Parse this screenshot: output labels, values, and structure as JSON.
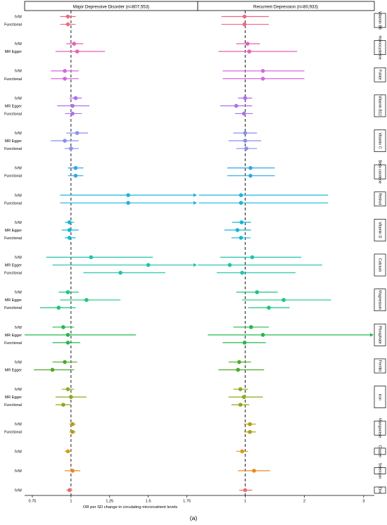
{
  "chart_data": {
    "type": "forest",
    "xlabel": "OR per SD change in circulating micronutrient levels",
    "panel_label": "(a)",
    "panels": [
      {
        "title": "Major Depressive Disorder (n=807,553)",
        "xlim": [
          0.7,
          1.82
        ],
        "ticks": [
          0.75,
          1,
          1.25,
          1.5,
          1.75
        ],
        "tick_labels": [
          "0.75",
          "1",
          "1.25",
          "1.5",
          "1.75"
        ]
      },
      {
        "title": "Recurrent Depression (n=80,933)",
        "xlim": [
          0.2,
          3.18
        ],
        "ticks": [
          1,
          2,
          3
        ],
        "tick_labels": [
          "1",
          "2",
          "3"
        ]
      }
    ],
    "groups": [
      {
        "name": "Vitamin B6",
        "color": "#ee6a7f",
        "rows": [
          {
            "method": "IVW",
            "mdd": [
              0.98,
              0.93,
              1.03
            ],
            "rd": [
              0.99,
              0.6,
              1.4
            ]
          },
          {
            "method": "Functional",
            "mdd": [
              0.98,
              0.93,
              1.03
            ],
            "rd": [
              0.99,
              0.6,
              1.4
            ]
          }
        ]
      },
      {
        "name": "Homocysteine",
        "color": "#ea5fb6",
        "rows": [
          {
            "method": "IVW",
            "mdd": [
              1.02,
              0.97,
              1.08
            ],
            "rd": [
              1.04,
              0.85,
              1.25
            ]
          },
          {
            "method": "MR Egger",
            "mdd": [
              1.04,
              0.9,
              1.22
            ],
            "rd": [
              1.07,
              0.55,
              1.88
            ]
          }
        ]
      },
      {
        "name": "Folate",
        "color": "#d468e0",
        "rows": [
          {
            "method": "IVW",
            "mdd": [
              0.96,
              0.87,
              1.05
            ],
            "rd": [
              1.3,
              0.62,
              2.0
            ]
          },
          {
            "method": "Functional",
            "mdd": [
              0.96,
              0.87,
              1.05
            ],
            "rd": [
              1.3,
              0.62,
              2.0
            ]
          }
        ]
      },
      {
        "name": "Vitamin B12",
        "color": "#ad70f0",
        "rows": [
          {
            "method": "IVW",
            "mdd": [
              1.03,
              0.99,
              1.07
            ],
            "rd": [
              1.0,
              0.88,
              1.12
            ]
          },
          {
            "method": "MR Egger",
            "mdd": [
              1.01,
              0.91,
              1.12
            ],
            "rd": [
              0.85,
              0.58,
              1.12
            ]
          },
          {
            "method": "Functional",
            "mdd": [
              1.01,
              0.96,
              1.07
            ],
            "rd": [
              0.98,
              0.83,
              1.13
            ]
          }
        ]
      },
      {
        "name": "Vitamin C",
        "color": "#8a8ef2",
        "rows": [
          {
            "method": "IVW",
            "mdd": [
              1.04,
              0.97,
              1.11
            ],
            "rd": [
              1.0,
              0.8,
              1.2
            ]
          },
          {
            "method": "MR Egger",
            "mdd": [
              0.96,
              0.87,
              1.05
            ],
            "rd": [
              1.0,
              0.72,
              1.27
            ]
          },
          {
            "method": "Functional",
            "mdd": [
              1.0,
              0.96,
              1.05
            ],
            "rd": [
              1.02,
              0.85,
              1.2
            ]
          }
        ]
      },
      {
        "name": "Beta carotene",
        "color": "#2ea8e8",
        "rows": [
          {
            "method": "IVW",
            "mdd": [
              1.03,
              0.98,
              1.08
            ],
            "rd": [
              1.09,
              0.7,
              1.5
            ]
          },
          {
            "method": "Functional",
            "mdd": [
              1.03,
              0.98,
              1.08
            ],
            "rd": [
              1.09,
              0.7,
              1.5
            ]
          }
        ]
      },
      {
        "name": "Retinol",
        "color": "#1eb4d8",
        "rows": [
          {
            "method": "IVW",
            "mdd": [
              1.37,
              0.93,
              1.82
            ],
            "rd": [
              0.93,
              0.22,
              2.4
            ]
          },
          {
            "method": "Functional",
            "mdd": [
              1.37,
              0.93,
              1.82
            ],
            "rd": [
              0.93,
              0.22,
              2.4
            ]
          }
        ]
      },
      {
        "name": "Vitamin D",
        "color": "#12b7d2",
        "rows": [
          {
            "method": "IVW",
            "mdd": [
              0.99,
              0.96,
              1.02
            ],
            "rd": [
              0.94,
              0.78,
              1.1
            ]
          },
          {
            "method": "MR Egger",
            "mdd": [
              0.99,
              0.94,
              1.05
            ],
            "rd": [
              0.87,
              0.65,
              1.1
            ]
          },
          {
            "method": "Functional",
            "mdd": [
              0.99,
              0.96,
              1.03
            ],
            "rd": [
              0.93,
              0.77,
              1.09
            ]
          }
        ]
      },
      {
        "name": "Calcium",
        "color": "#1ec3ad",
        "rows": [
          {
            "method": "IVW",
            "mdd": [
              1.13,
              0.84,
              1.53
            ],
            "rd": [
              1.12,
              0.58,
              1.95
            ]
          },
          {
            "method": "MR Egger",
            "mdd": [
              1.5,
              0.88,
              1.82
            ],
            "rd": [
              0.74,
              0.2,
              2.3
            ]
          },
          {
            "method": "Functional",
            "mdd": [
              1.32,
              1.08,
              1.61
            ],
            "rd": [
              0.95,
              0.52,
              1.85
            ]
          }
        ]
      },
      {
        "name": "Magnesium",
        "color": "#1cc57e",
        "rows": [
          {
            "method": "IVW",
            "mdd": [
              0.98,
              0.92,
              1.05
            ],
            "rd": [
              1.2,
              0.85,
              1.55
            ]
          },
          {
            "method": "MR Egger",
            "mdd": [
              1.1,
              0.93,
              1.32
            ],
            "rd": [
              1.65,
              0.95,
              2.45
            ]
          },
          {
            "method": "Functional",
            "mdd": [
              0.92,
              0.8,
              1.03
            ],
            "rd": [
              1.4,
              1.05,
              1.75
            ]
          }
        ]
      },
      {
        "name": "Phosphate",
        "color": "#26b84c",
        "rows": [
          {
            "method": "IVW",
            "mdd": [
              0.95,
              0.88,
              1.02
            ],
            "rd": [
              1.1,
              0.8,
              1.4
            ]
          },
          {
            "method": "MR Egger",
            "mdd": [
              0.98,
              0.7,
              1.42
            ],
            "rd": [
              1.3,
              0.37,
              3.18
            ]
          },
          {
            "method": "Functional",
            "mdd": [
              0.98,
              0.88,
              1.06
            ],
            "rd": [
              0.99,
              0.62,
              1.35
            ]
          }
        ]
      },
      {
        "name": "Ferritin",
        "color": "#4cab24",
        "rows": [
          {
            "method": "IVW",
            "mdd": [
              0.96,
              0.88,
              1.04
            ],
            "rd": [
              0.9,
              0.72,
              1.1
            ]
          },
          {
            "method": "MR Egger",
            "mdd": [
              0.88,
              0.76,
              1.02
            ],
            "rd": [
              0.88,
              0.55,
              1.32
            ]
          }
        ]
      },
      {
        "name": "Iron",
        "color": "#8aab1a",
        "rows": [
          {
            "method": "IVW",
            "mdd": [
              0.98,
              0.94,
              1.02
            ],
            "rd": [
              0.92,
              0.8,
              1.05
            ]
          },
          {
            "method": "MR Egger",
            "mdd": [
              1.0,
              0.9,
              1.1
            ],
            "rd": [
              0.98,
              0.72,
              1.3
            ]
          },
          {
            "method": "Functional",
            "mdd": [
              0.95,
              0.9,
              1.0
            ],
            "rd": [
              0.92,
              0.77,
              1.07
            ]
          }
        ]
      },
      {
        "name": "Manganese",
        "color": "#b59e12",
        "rows": [
          {
            "method": "IVW",
            "mdd": [
              1.01,
              0.99,
              1.03
            ],
            "rd": [
              1.08,
              0.98,
              1.18
            ]
          },
          {
            "method": "Functional",
            "mdd": [
              1.01,
              0.99,
              1.03
            ],
            "rd": [
              1.08,
              0.98,
              1.18
            ]
          }
        ]
      },
      {
        "name": "Copper",
        "color": "#d49a1a",
        "rows": [
          {
            "method": "IVW",
            "mdd": [
              0.98,
              0.96,
              1.0
            ],
            "rd": [
              0.95,
              0.85,
              1.05
            ]
          }
        ]
      },
      {
        "name": "Selenium",
        "color": "#e8891d",
        "rows": [
          {
            "method": "IVW",
            "mdd": [
              1.01,
              0.96,
              1.06
            ],
            "rd": [
              1.15,
              0.88,
              1.42
            ]
          }
        ]
      },
      {
        "name": "Zinc",
        "color": "#ef6d6d",
        "rows": [
          {
            "method": "IVW",
            "mdd": [
              0.99,
              0.97,
              1.01
            ],
            "rd": [
              1.0,
              0.9,
              1.12
            ]
          }
        ]
      }
    ]
  }
}
